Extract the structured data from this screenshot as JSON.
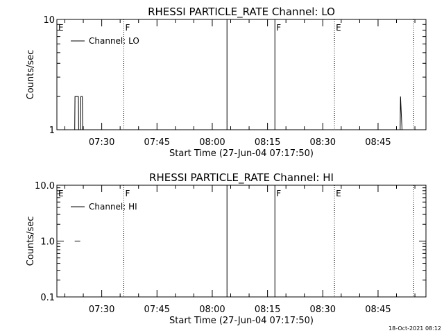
{
  "footer": {
    "date_stamp": "18-Oct-2021 08:12"
  },
  "chart_data": [
    {
      "type": "line",
      "title": "RHESSI PARTICLE_RATE Channel: LO",
      "xlabel": "Start Time (27-Jun-04 07:17:50)",
      "ylabel": "Counts/sec",
      "yscale": "log",
      "ylim": [
        1,
        10
      ],
      "xlim": [
        "07:17:50",
        "08:58:00"
      ],
      "x_ticks": [
        "07:30",
        "07:45",
        "08:00",
        "08:15",
        "08:30",
        "08:45"
      ],
      "y_ticks": [
        {
          "value": 1,
          "label": "1"
        },
        {
          "value": 10,
          "label": "10"
        }
      ],
      "legend": {
        "position": "top-left",
        "entries": [
          "Channel: LO"
        ]
      },
      "series": [
        {
          "name": "Channel: LO",
          "x": [
            "07:22:40",
            "07:22:45",
            "07:23:40",
            "07:23:45",
            "07:24:15",
            "07:24:20",
            "07:24:45",
            "07:24:50",
            "07:25:00",
            "07:25:05",
            "08:51:00",
            "08:51:05",
            "08:51:30",
            "08:51:35"
          ],
          "y": [
            1,
            2,
            2,
            1,
            1,
            2,
            2,
            1,
            1,
            1,
            1,
            2,
            1,
            1
          ]
        }
      ],
      "markers": [
        {
          "label": "E",
          "time": "07:17:50",
          "style": "dotted"
        },
        {
          "label": "F",
          "time": "07:36:00",
          "style": "dotted"
        },
        {
          "label": "",
          "time": "08:04:00",
          "style": "solid"
        },
        {
          "label": "F",
          "time": "08:17:00",
          "style": "solid"
        },
        {
          "label": "E",
          "time": "08:33:10",
          "style": "dotted"
        },
        {
          "label": "",
          "time": "08:54:40",
          "style": "dotted"
        }
      ]
    },
    {
      "type": "line",
      "title": "RHESSI PARTICLE_RATE Channel: HI",
      "xlabel": "Start Time (27-Jun-04 07:17:50)",
      "ylabel": "Counts/sec",
      "yscale": "log",
      "ylim": [
        0.1,
        10
      ],
      "xlim": [
        "07:17:50",
        "08:58:00"
      ],
      "x_ticks": [
        "07:30",
        "07:45",
        "08:00",
        "08:15",
        "08:30",
        "08:45"
      ],
      "y_ticks": [
        {
          "value": 0.1,
          "label": "0.1"
        },
        {
          "value": 1,
          "label": "1.0"
        },
        {
          "value": 10,
          "label": "10.0"
        }
      ],
      "legend": {
        "position": "top-left",
        "entries": [
          "Channel: HI"
        ]
      },
      "series": [
        {
          "name": "Channel: HI",
          "x": [
            "07:22:40",
            "07:24:10"
          ],
          "y": [
            1,
            1
          ]
        }
      ],
      "markers": [
        {
          "label": "E",
          "time": "07:17:50",
          "style": "dotted"
        },
        {
          "label": "F",
          "time": "07:36:00",
          "style": "dotted"
        },
        {
          "label": "",
          "time": "08:04:00",
          "style": "solid"
        },
        {
          "label": "F",
          "time": "08:17:00",
          "style": "solid"
        },
        {
          "label": "E",
          "time": "08:33:10",
          "style": "dotted"
        },
        {
          "label": "",
          "time": "08:54:40",
          "style": "dotted"
        }
      ]
    }
  ]
}
